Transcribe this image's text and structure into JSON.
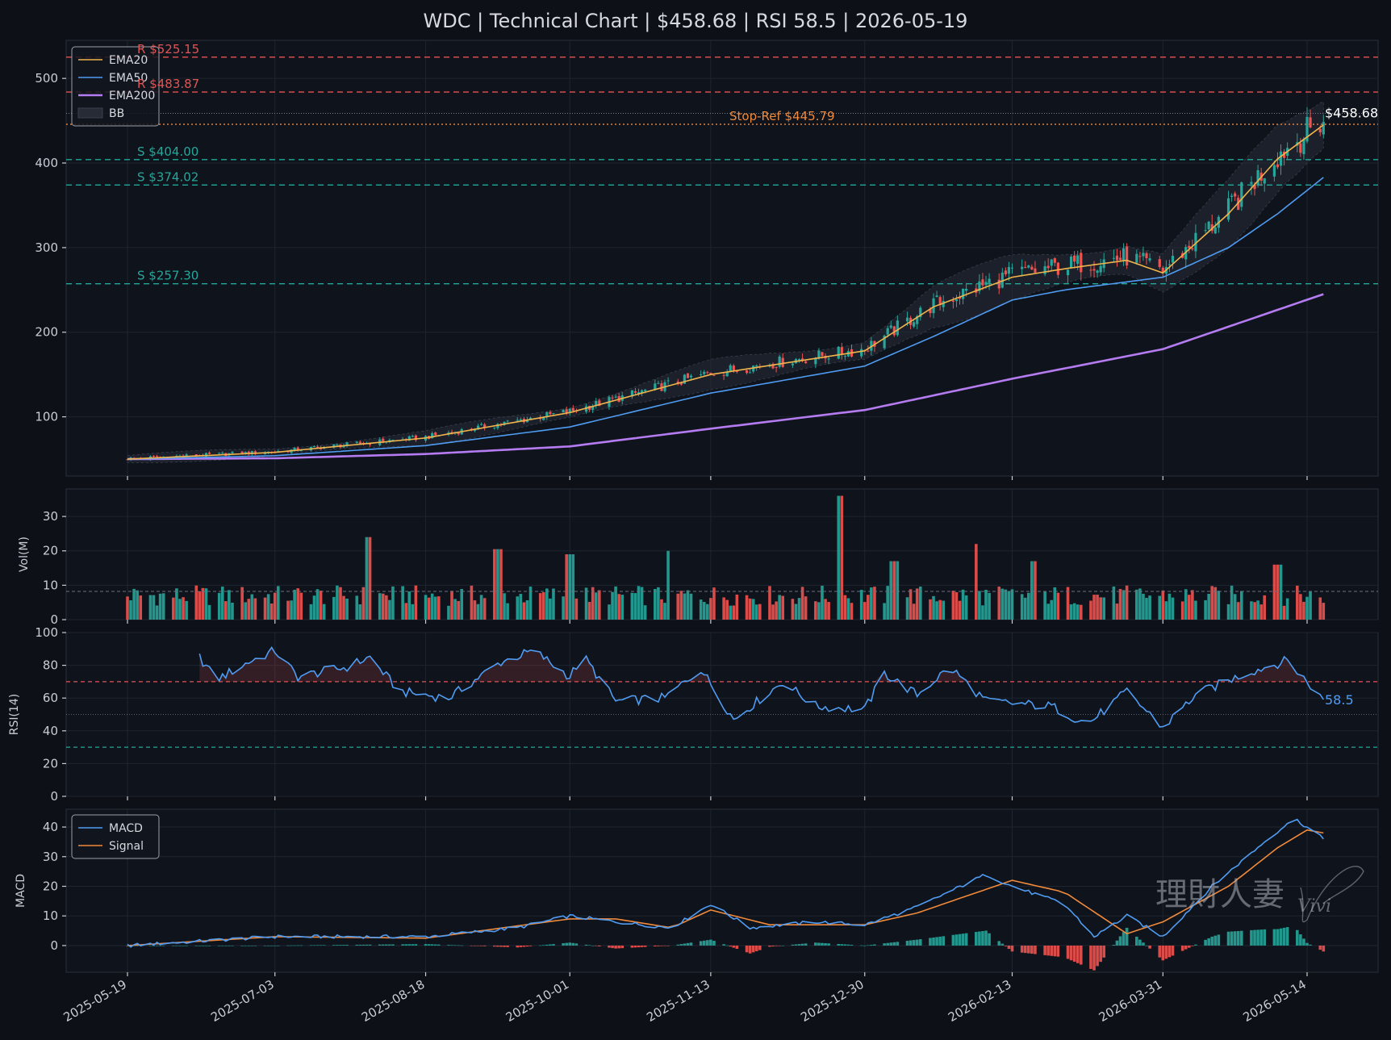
{
  "title": "WDC | Technical Chart | $458.68 | RSI 58.5 | 2026-05-19",
  "colors": {
    "background": "#0d1017",
    "panel": "#0f131b",
    "grid": "#1f2430",
    "up": "#26a69a",
    "down": "#ef5350",
    "ema20": "#f0b44c",
    "ema50": "#4f9cf2",
    "ema200": "#b57cf2",
    "macd": "#4f9cf2",
    "signal": "#f08a3c",
    "resistance": "#e05555",
    "support": "#26a69a",
    "stop": "#f08a3c",
    "rsi": "#4f9cf2"
  },
  "chart_data": [
    {
      "type": "line",
      "panel": "price",
      "title": "WDC | Technical Chart | $458.68 | RSI 58.5 | 2026-05-19",
      "x_ticks": [
        "2025-05-19",
        "2025-07-03",
        "2025-08-18",
        "2025-10-01",
        "2025-11-13",
        "2025-12-30",
        "2026-02-13",
        "2026-03-31",
        "2026-05-14"
      ],
      "y_ticks": [
        "100",
        "200",
        "300",
        "400",
        "500"
      ],
      "ylim": [
        30,
        545
      ],
      "grid": true,
      "legend_placement": "top-left",
      "legend": [
        "EMA20",
        "EMA50",
        "EMA200",
        "BB"
      ],
      "series": [
        {
          "name": "EMA20",
          "key_points": [
            [
              "2025-05-19",
              50
            ],
            [
              "2025-07-03",
              58
            ],
            [
              "2025-08-18",
              75
            ],
            [
              "2025-10-01",
              105
            ],
            [
              "2025-11-13",
              150
            ],
            [
              "2025-12-30",
              178
            ],
            [
              "2026-01-20",
              230
            ],
            [
              "2026-02-13",
              265
            ],
            [
              "2026-03-01",
              275
            ],
            [
              "2026-03-20",
              285
            ],
            [
              "2026-03-31",
              270
            ],
            [
              "2026-04-20",
              340
            ],
            [
              "2026-05-05",
              405
            ],
            [
              "2026-05-19",
              445
            ]
          ]
        },
        {
          "name": "EMA50",
          "key_points": [
            [
              "2025-05-19",
              50
            ],
            [
              "2025-07-03",
              54
            ],
            [
              "2025-08-18",
              66
            ],
            [
              "2025-10-01",
              88
            ],
            [
              "2025-11-13",
              128
            ],
            [
              "2025-12-30",
              160
            ],
            [
              "2026-01-20",
              195
            ],
            [
              "2026-02-13",
              238
            ],
            [
              "2026-03-01",
              250
            ],
            [
              "2026-03-31",
              265
            ],
            [
              "2026-04-20",
              300
            ],
            [
              "2026-05-05",
              340
            ],
            [
              "2026-05-19",
              383
            ]
          ]
        },
        {
          "name": "EMA200",
          "key_points": [
            [
              "2025-05-19",
              50
            ],
            [
              "2025-07-03",
              51
            ],
            [
              "2025-08-18",
              56
            ],
            [
              "2025-10-01",
              65
            ],
            [
              "2025-11-13",
              86
            ],
            [
              "2025-12-30",
              108
            ],
            [
              "2026-02-13",
              145
            ],
            [
              "2026-03-31",
              180
            ],
            [
              "2026-05-19",
              245
            ]
          ]
        }
      ],
      "levels": [
        {
          "label": "R $525.15",
          "value": 525.15,
          "kind": "resistance"
        },
        {
          "label": "R $483.87",
          "value": 483.87,
          "kind": "resistance"
        },
        {
          "label": "Stop-Ref $445.79",
          "value": 445.79,
          "kind": "stop"
        },
        {
          "label": "S $404.00",
          "value": 404.0,
          "kind": "support"
        },
        {
          "label": "S $374.02",
          "value": 374.02,
          "kind": "support"
        },
        {
          "label": "S $257.30",
          "value": 257.3,
          "kind": "support"
        }
      ],
      "last_price": {
        "label": "$458.68",
        "value": 458.68
      }
    },
    {
      "type": "bar",
      "panel": "volume",
      "ylabel": "Vol(M)",
      "y_ticks": [
        "0",
        "10",
        "20",
        "30"
      ],
      "ylim": [
        0,
        38
      ],
      "average_line": 8.2,
      "spikes": [
        [
          "2025-08-01",
          24
        ],
        [
          "2025-09-09",
          20.5
        ],
        [
          "2025-10-01",
          19
        ],
        [
          "2025-11-01",
          20
        ],
        [
          "2025-12-22",
          36
        ],
        [
          "2026-01-08",
          17
        ],
        [
          "2026-02-01",
          22
        ],
        [
          "2026-02-20",
          17
        ],
        [
          "2026-05-05",
          16
        ]
      ]
    },
    {
      "type": "line",
      "panel": "rsi",
      "ylabel": "RSI(14)",
      "y_ticks": [
        "0",
        "20",
        "40",
        "60",
        "80",
        "100"
      ],
      "ylim": [
        0,
        100
      ],
      "overbought": 70,
      "oversold": 30,
      "last": {
        "label": "58.5",
        "value": 58.5
      },
      "key_points": [
        [
          "2025-06-10",
          85
        ],
        [
          "2025-06-15",
          71
        ],
        [
          "2025-06-25",
          82
        ],
        [
          "2025-07-03",
          89
        ],
        [
          "2025-07-10",
          73
        ],
        [
          "2025-07-25",
          79
        ],
        [
          "2025-08-01",
          85
        ],
        [
          "2025-08-10",
          64
        ],
        [
          "2025-08-25",
          60
        ],
        [
          "2025-09-10",
          82
        ],
        [
          "2025-09-20",
          89
        ],
        [
          "2025-10-01",
          73
        ],
        [
          "2025-10-05",
          86
        ],
        [
          "2025-10-15",
          58
        ],
        [
          "2025-10-30",
          60
        ],
        [
          "2025-11-10",
          78
        ],
        [
          "2025-11-20",
          47
        ],
        [
          "2025-12-05",
          70
        ],
        [
          "2025-12-15",
          55
        ],
        [
          "2025-12-30",
          53
        ],
        [
          "2026-01-05",
          75
        ],
        [
          "2026-01-15",
          62
        ],
        [
          "2026-01-25",
          79
        ],
        [
          "2026-02-05",
          58
        ],
        [
          "2026-02-25",
          55
        ],
        [
          "2026-03-08",
          44
        ],
        [
          "2026-03-20",
          64
        ],
        [
          "2026-03-31",
          42
        ],
        [
          "2026-04-10",
          62
        ],
        [
          "2026-04-25",
          75
        ],
        [
          "2026-05-08",
          83
        ],
        [
          "2026-05-14",
          70
        ],
        [
          "2026-05-19",
          58.5
        ]
      ]
    },
    {
      "type": "line",
      "panel": "macd",
      "ylabel": "MACD",
      "y_ticks": [
        "0",
        "10",
        "20",
        "30",
        "40"
      ],
      "ylim": [
        -9,
        46
      ],
      "legend_placement": "top-left",
      "legend": [
        "MACD",
        "Signal"
      ],
      "series": [
        {
          "name": "MACD",
          "key_points": [
            [
              "2025-05-19",
              0
            ],
            [
              "2025-07-03",
              3
            ],
            [
              "2025-08-18",
              3
            ],
            [
              "2025-09-15",
              6
            ],
            [
              "2025-10-01",
              10
            ],
            [
              "2025-10-15",
              8
            ],
            [
              "2025-11-01",
              6
            ],
            [
              "2025-11-13",
              14
            ],
            [
              "2025-11-25",
              6
            ],
            [
              "2025-12-15",
              8
            ],
            [
              "2025-12-30",
              7
            ],
            [
              "2026-01-15",
              13
            ],
            [
              "2026-02-05",
              24
            ],
            [
              "2026-02-13",
              20
            ],
            [
              "2026-03-01",
              14
            ],
            [
              "2026-03-10",
              3
            ],
            [
              "2026-03-20",
              10
            ],
            [
              "2026-03-31",
              3
            ],
            [
              "2026-04-15",
              20
            ],
            [
              "2026-05-01",
              35
            ],
            [
              "2026-05-10",
              43
            ],
            [
              "2026-05-19",
              36
            ]
          ]
        },
        {
          "name": "Signal",
          "key_points": [
            [
              "2025-05-19",
              0
            ],
            [
              "2025-07-03",
              3
            ],
            [
              "2025-08-18",
              2.5
            ],
            [
              "2025-10-01",
              9
            ],
            [
              "2025-10-15",
              9
            ],
            [
              "2025-11-01",
              6
            ],
            [
              "2025-11-13",
              12
            ],
            [
              "2025-12-01",
              7
            ],
            [
              "2025-12-30",
              7
            ],
            [
              "2026-01-15",
              11
            ],
            [
              "2026-02-13",
              22
            ],
            [
              "2026-03-01",
              18
            ],
            [
              "2026-03-20",
              4
            ],
            [
              "2026-03-31",
              8
            ],
            [
              "2026-04-20",
              20
            ],
            [
              "2026-05-05",
              33
            ],
            [
              "2026-05-14",
              39
            ],
            [
              "2026-05-19",
              38
            ]
          ]
        }
      ]
    }
  ],
  "watermark": {
    "text": "理財人妻",
    "signature": "Vivi"
  }
}
